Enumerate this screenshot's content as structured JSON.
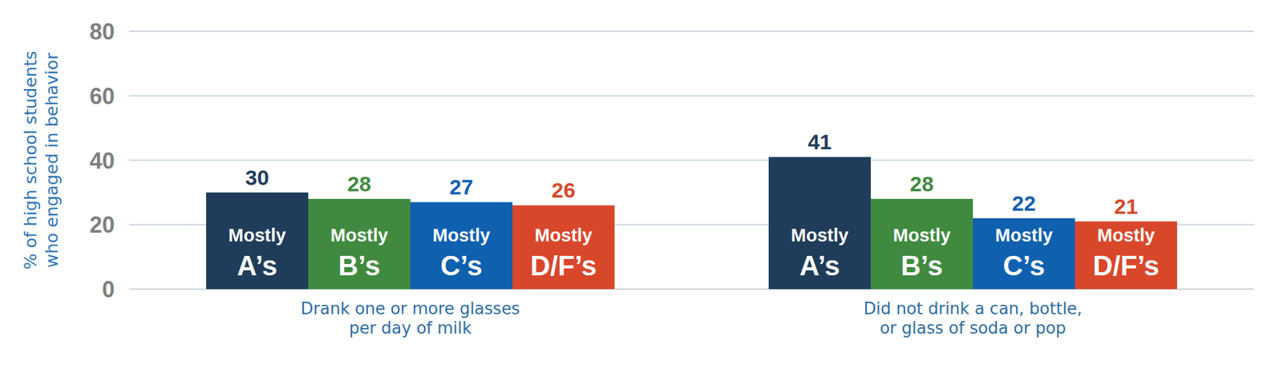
{
  "chart_data": {
    "type": "bar",
    "y_label": "% of high school students who engaged in behavior",
    "categories": [
      "Drank one or more glasses per day of milk",
      "Did not drink a can, bottle, or glass of soda or pop"
    ],
    "series": [
      {
        "name": "Mostly A’s",
        "color": "#1f3d5a",
        "values": [
          30,
          41
        ]
      },
      {
        "name": "Mostly B’s",
        "color": "#3f8a3f",
        "values": [
          28,
          28
        ]
      },
      {
        "name": "Mostly C’s",
        "color": "#1060b0",
        "values": [
          27,
          22
        ]
      },
      {
        "name": "Mostly D/F’s",
        "color": "#d9472b",
        "values": [
          26,
          21
        ]
      }
    ],
    "ylim": [
      0,
      80
    ],
    "yticks": [
      0,
      20,
      40,
      60,
      80
    ],
    "grid": true,
    "data_labels": true
  }
}
